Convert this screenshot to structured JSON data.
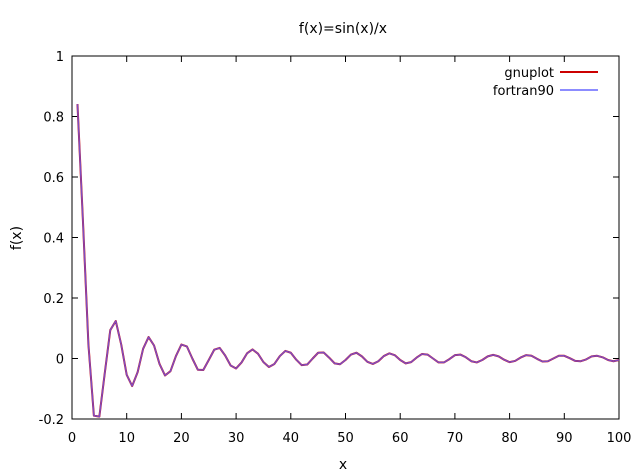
{
  "chart_data": {
    "type": "line",
    "title": "f(x)=sin(x)/x",
    "xlabel": "x",
    "ylabel": "f(x)",
    "xlim": [
      0,
      100
    ],
    "ylim": [
      -0.2,
      1
    ],
    "xticks": [
      "0",
      "10",
      "20",
      "30",
      "40",
      "50",
      "60",
      "70",
      "80",
      "90",
      "100"
    ],
    "yticks": [
      "-0.2",
      "0",
      "0.2",
      "0.4",
      "0.6",
      "0.8",
      "1"
    ],
    "grid": false,
    "legend_position": "top-right",
    "series": [
      {
        "name": "gnuplot",
        "color": "#cc0000",
        "x": [
          1,
          2,
          3,
          4,
          5,
          6,
          7,
          8,
          9,
          10,
          11,
          12,
          13,
          14,
          15,
          16,
          17,
          18,
          19,
          20,
          21,
          22,
          23,
          24,
          25,
          26,
          27,
          28,
          29,
          30,
          31,
          32,
          33,
          34,
          35,
          36,
          37,
          38,
          39,
          40,
          41,
          42,
          43,
          44,
          45,
          46,
          47,
          48,
          49,
          50,
          51,
          52,
          53,
          54,
          55,
          56,
          57,
          58,
          59,
          60,
          61,
          62,
          63,
          64,
          65,
          66,
          67,
          68,
          69,
          70,
          71,
          72,
          73,
          74,
          75,
          76,
          77,
          78,
          79,
          80,
          81,
          82,
          83,
          84,
          85,
          86,
          87,
          88,
          89,
          90,
          91,
          92,
          93,
          94,
          95,
          96,
          97,
          98,
          99,
          100
        ],
        "y": [
          0.841,
          0.455,
          0.047,
          -0.189,
          -0.192,
          -0.047,
          0.094,
          0.124,
          0.046,
          -0.054,
          -0.091,
          -0.045,
          0.032,
          0.071,
          0.043,
          -0.018,
          -0.056,
          -0.042,
          0.008,
          0.046,
          0.04,
          0.0,
          -0.037,
          -0.038,
          -0.005,
          0.029,
          0.035,
          0.01,
          -0.023,
          -0.033,
          -0.013,
          0.017,
          0.03,
          0.016,
          -0.012,
          -0.028,
          -0.018,
          0.008,
          0.025,
          0.019,
          -0.004,
          -0.022,
          -0.02,
          0.0,
          0.019,
          0.02,
          0.003,
          -0.016,
          -0.019,
          -0.005,
          0.013,
          0.019,
          0.007,
          -0.011,
          -0.018,
          -0.009,
          0.008,
          0.017,
          0.011,
          -0.005,
          -0.016,
          -0.012,
          0.003,
          0.015,
          0.013,
          0.0,
          -0.013,
          -0.013,
          -0.002,
          0.011,
          0.013,
          0.004,
          -0.009,
          -0.013,
          -0.005,
          0.007,
          0.012,
          0.007,
          -0.004,
          -0.012,
          -0.008,
          0.003,
          0.011,
          0.009,
          -0.001,
          -0.01,
          -0.009,
          0.0,
          0.009,
          0.009,
          0.001,
          -0.008,
          -0.009,
          -0.003,
          0.007,
          0.009,
          0.004,
          -0.005,
          -0.009,
          -0.005
        ]
      },
      {
        "name": "fortran90",
        "color": "#6666ff",
        "x": [
          1,
          2,
          3,
          4,
          5,
          6,
          7,
          8,
          9,
          10,
          11,
          12,
          13,
          14,
          15,
          16,
          17,
          18,
          19,
          20,
          21,
          22,
          23,
          24,
          25,
          26,
          27,
          28,
          29,
          30,
          31,
          32,
          33,
          34,
          35,
          36,
          37,
          38,
          39,
          40,
          41,
          42,
          43,
          44,
          45,
          46,
          47,
          48,
          49,
          50,
          51,
          52,
          53,
          54,
          55,
          56,
          57,
          58,
          59,
          60,
          61,
          62,
          63,
          64,
          65,
          66,
          67,
          68,
          69,
          70,
          71,
          72,
          73,
          74,
          75,
          76,
          77,
          78,
          79,
          80,
          81,
          82,
          83,
          84,
          85,
          86,
          87,
          88,
          89,
          90,
          91,
          92,
          93,
          94,
          95,
          96,
          97,
          98,
          99,
          100
        ],
        "y": [
          0.841,
          0.455,
          0.047,
          -0.189,
          -0.192,
          -0.047,
          0.094,
          0.124,
          0.046,
          -0.054,
          -0.091,
          -0.045,
          0.032,
          0.071,
          0.043,
          -0.018,
          -0.056,
          -0.042,
          0.008,
          0.046,
          0.04,
          0.0,
          -0.037,
          -0.038,
          -0.005,
          0.029,
          0.035,
          0.01,
          -0.023,
          -0.033,
          -0.013,
          0.017,
          0.03,
          0.016,
          -0.012,
          -0.028,
          -0.018,
          0.008,
          0.025,
          0.019,
          -0.004,
          -0.022,
          -0.02,
          0.0,
          0.019,
          0.02,
          0.003,
          -0.016,
          -0.019,
          -0.005,
          0.013,
          0.019,
          0.007,
          -0.011,
          -0.018,
          -0.009,
          0.008,
          0.017,
          0.011,
          -0.005,
          -0.016,
          -0.012,
          0.003,
          0.015,
          0.013,
          0.0,
          -0.013,
          -0.013,
          -0.002,
          0.011,
          0.013,
          0.004,
          -0.009,
          -0.013,
          -0.005,
          0.007,
          0.012,
          0.007,
          -0.004,
          -0.012,
          -0.008,
          0.003,
          0.011,
          0.009,
          -0.001,
          -0.01,
          -0.009,
          0.0,
          0.009,
          0.009,
          0.001,
          -0.008,
          -0.009,
          -0.003,
          0.007,
          0.009,
          0.004,
          -0.005,
          -0.009,
          -0.005
        ]
      }
    ]
  }
}
